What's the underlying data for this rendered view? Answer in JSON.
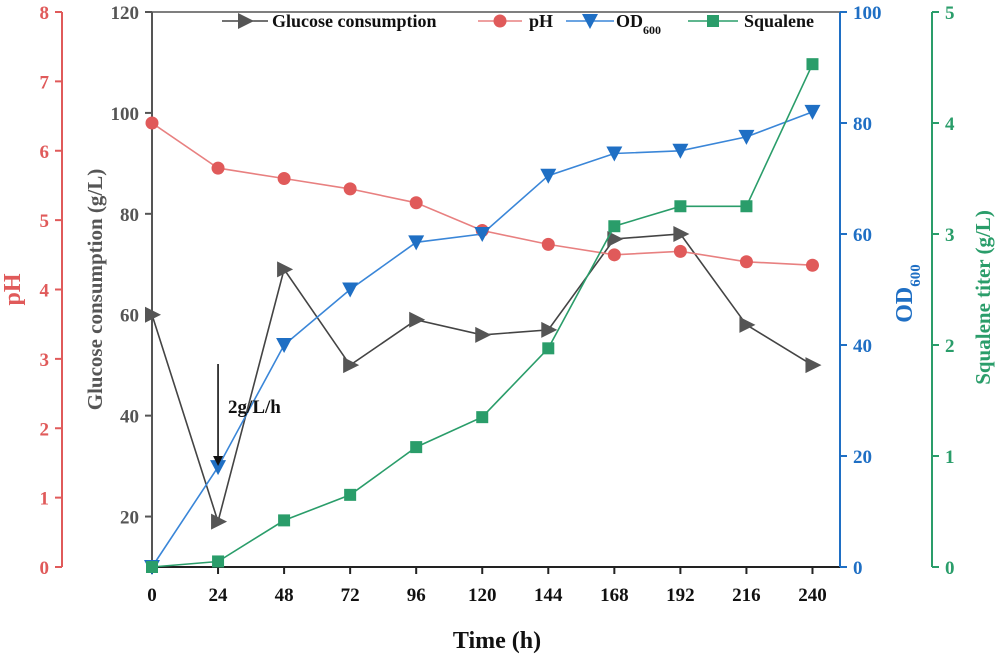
{
  "chart_data": {
    "type": "line",
    "x_axis": {
      "label": "Time (h)",
      "range": [
        0,
        250
      ],
      "ticks": [
        0,
        24,
        48,
        72,
        96,
        120,
        144,
        168,
        192,
        216,
        240
      ],
      "tick_labels": [
        "0",
        "24",
        "48",
        "72",
        "96",
        "120",
        "144",
        "168",
        "192",
        "216",
        "240"
      ]
    },
    "axes": {
      "ph": {
        "label": "pH",
        "range": [
          0,
          8
        ],
        "ticks": [
          0,
          1,
          2,
          3,
          4,
          5,
          6,
          7,
          8
        ],
        "tick_labels": [
          "0",
          "1",
          "2",
          "3",
          "4",
          "5",
          "6",
          "7",
          "8"
        ],
        "color": "#e05a5a"
      },
      "glucose": {
        "label": "Glucose consumption (g/L)",
        "range": [
          10,
          120
        ],
        "ticks": [
          20,
          40,
          60,
          80,
          100,
          120
        ],
        "tick_labels": [
          "20",
          "40",
          "60",
          "80",
          "100",
          "120"
        ],
        "color": "#555555"
      },
      "od": {
        "label_main": "OD",
        "label_sub": "600",
        "range": [
          0,
          100
        ],
        "ticks": [
          0,
          20,
          40,
          60,
          80,
          100
        ],
        "tick_labels": [
          "0",
          "20",
          "40",
          "60",
          "80",
          "100"
        ],
        "color": "#1f6fc4"
      },
      "squalene": {
        "label": "Squalene titer (g/L)",
        "range": [
          0,
          5
        ],
        "ticks": [
          0,
          1,
          2,
          3,
          4,
          5
        ],
        "tick_labels": [
          "0",
          "1",
          "2",
          "3",
          "4",
          "5"
        ],
        "color": "#2a9d6a"
      }
    },
    "series": [
      {
        "key": "glucose",
        "name": "Glucose consumption",
        "axis": "glucose",
        "marker": "triangle-right",
        "color": "#555555",
        "line_color": "#444444",
        "x": [
          0,
          24,
          48,
          72,
          96,
          120,
          144,
          168,
          192,
          216,
          240
        ],
        "y": [
          60,
          19,
          69,
          50,
          59,
          56,
          57,
          75,
          76,
          58,
          50
        ]
      },
      {
        "key": "ph",
        "name": "pH",
        "axis": "ph",
        "marker": "circle",
        "color": "#e05a5a",
        "line_color": "#e88080",
        "x": [
          0,
          24,
          48,
          72,
          96,
          120,
          144,
          168,
          192,
          216,
          240
        ],
        "y": [
          6.4,
          5.75,
          5.6,
          5.45,
          5.25,
          4.85,
          4.65,
          4.5,
          4.55,
          4.4,
          4.35
        ]
      },
      {
        "key": "od",
        "name": "OD",
        "name_sub": "600",
        "axis": "od",
        "marker": "triangle-down",
        "color": "#1f6fc4",
        "line_color": "#3a86d8",
        "x": [
          0,
          24,
          48,
          72,
          96,
          120,
          144,
          168,
          192,
          216,
          240
        ],
        "y": [
          0,
          18,
          40,
          50,
          58.5,
          60,
          70.5,
          74.5,
          75,
          77.5,
          82
        ]
      },
      {
        "key": "squalene",
        "name": "Squalene",
        "axis": "squalene",
        "marker": "square",
        "color": "#2a9d6a",
        "line_color": "#2a9d6a",
        "x": [
          0,
          24,
          48,
          72,
          96,
          120,
          144,
          168,
          192,
          216,
          240
        ],
        "y": [
          0,
          0.05,
          0.42,
          0.65,
          1.08,
          1.35,
          1.97,
          3.07,
          3.25,
          3.25,
          4.53
        ]
      }
    ],
    "annotations": [
      {
        "text": "2g/L/h",
        "x": 24,
        "arrow": "down"
      }
    ],
    "legend_position": "top"
  }
}
